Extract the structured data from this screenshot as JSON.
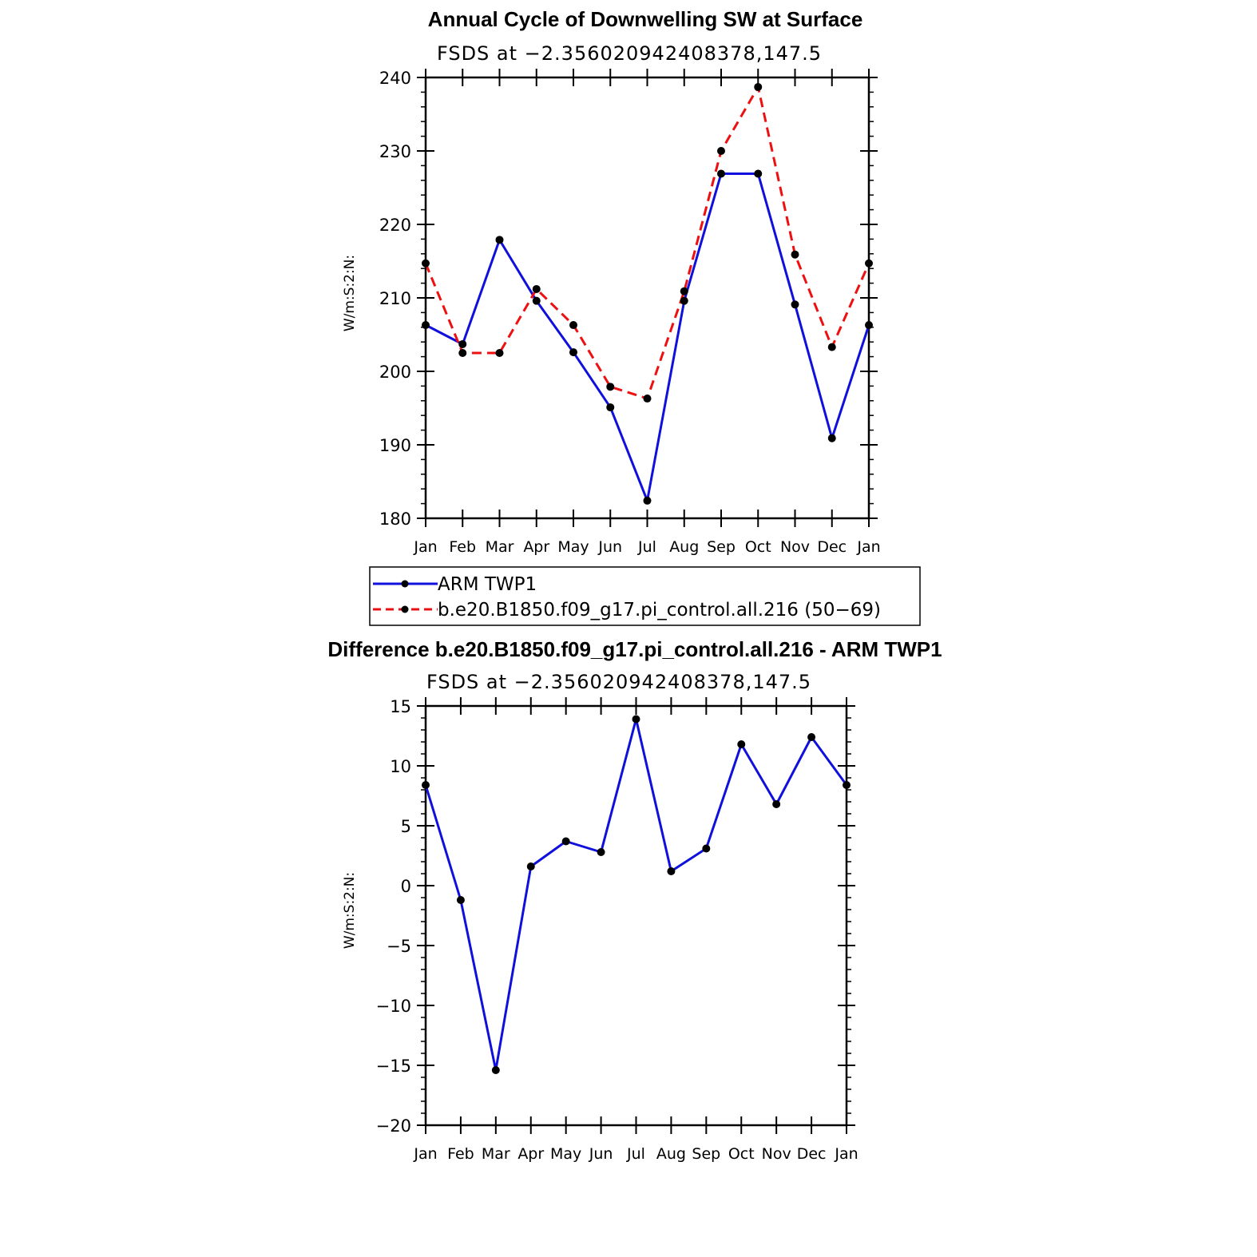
{
  "colors": {
    "obs": "#1010dd",
    "model": "#ee1010",
    "marker": "#000000",
    "axis": "#000000"
  },
  "chart_data": [
    {
      "type": "line",
      "title": "Annual Cycle of Downwelling SW at Surface",
      "subtitle": "FSDS at −2.356020942408378,147.5",
      "ylabel": "W/m:S:2:N:",
      "xlabel": "",
      "categories": [
        "Jan",
        "Feb",
        "Mar",
        "Apr",
        "May",
        "Jun",
        "Jul",
        "Aug",
        "Sep",
        "Oct",
        "Nov",
        "Dec",
        "Jan"
      ],
      "ylim": [
        180,
        240
      ],
      "yticks": [
        "180",
        "190",
        "200",
        "210",
        "220",
        "230",
        "240"
      ],
      "series": [
        {
          "name": "ARM TWP1",
          "color": "#1010dd",
          "dash": "solid",
          "values": [
            206.3,
            203.7,
            217.9,
            209.6,
            202.6,
            195.1,
            182.4,
            209.6,
            226.9,
            226.9,
            209.1,
            190.9,
            206.3
          ]
        },
        {
          "name": "b.e20.B1850.f09_g17.pi_control.all.216 (50−69)",
          "color": "#ee1010",
          "dash": "dashed",
          "values": [
            214.7,
            202.5,
            202.5,
            211.2,
            206.3,
            197.9,
            196.3,
            210.9,
            230.0,
            238.7,
            215.9,
            203.3,
            214.7
          ]
        }
      ],
      "legend_position": "bottom"
    },
    {
      "type": "line",
      "title": "Difference b.e20.B1850.f09_g17.pi_control.all.216 - ARM TWP1",
      "subtitle": "FSDS at −2.356020942408378,147.5",
      "ylabel": "W/m:S:2:N:",
      "xlabel": "",
      "categories": [
        "Jan",
        "Feb",
        "Mar",
        "Apr",
        "May",
        "Jun",
        "Jul",
        "Aug",
        "Sep",
        "Oct",
        "Nov",
        "Dec",
        "Jan"
      ],
      "ylim": [
        -20,
        15
      ],
      "yticks": [
        "−20",
        "−15",
        "−10",
        "−5",
        "0",
        "5",
        "10",
        "15"
      ],
      "series": [
        {
          "color": "#1010dd",
          "dash": "solid",
          "values": [
            8.4,
            -1.2,
            -15.4,
            1.6,
            3.7,
            2.8,
            13.9,
            1.2,
            3.1,
            11.8,
            6.8,
            12.4,
            8.4
          ]
        }
      ]
    }
  ]
}
